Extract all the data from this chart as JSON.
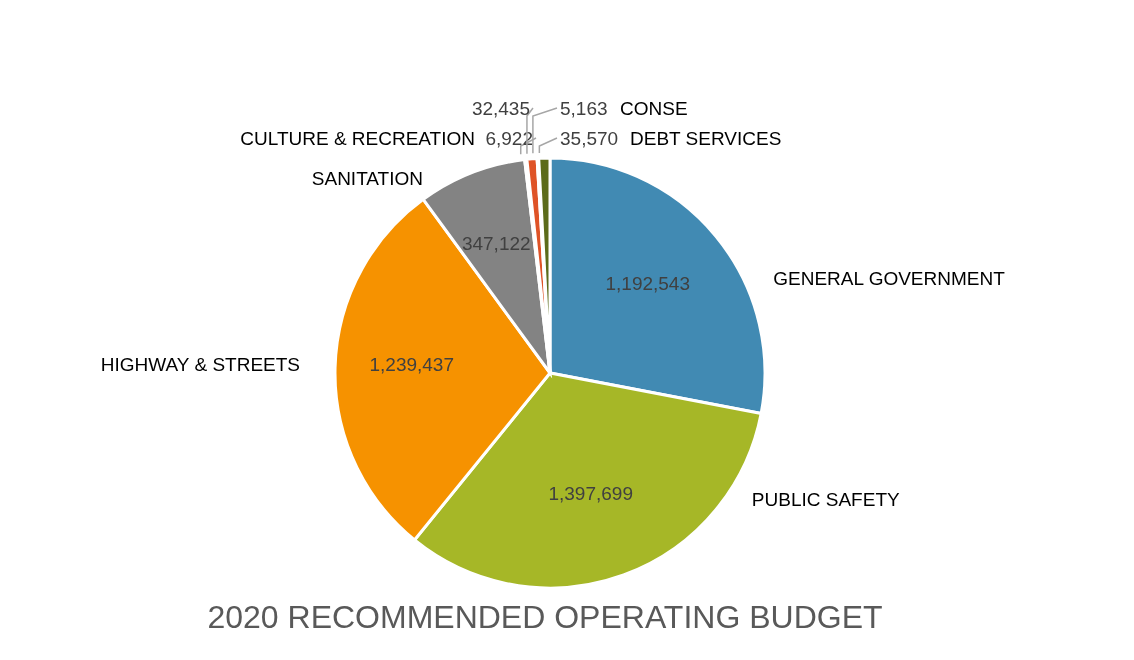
{
  "chart_data": {
    "type": "pie",
    "title": "2020 RECOMMENDED OPERATING BUDGET",
    "categories": [
      "GENERAL GOVERNMENT",
      "PUBLIC SAFETY",
      "HIGHWAY & STREETS",
      "SANITATION",
      "CULTURE & RECREATION",
      null,
      "CONSE",
      "DEBT SERVICES"
    ],
    "values": [
      1192543,
      1397699,
      1239437,
      347122,
      6922,
      32435,
      5163,
      35570
    ],
    "value_labels": [
      "1,192,543",
      "1,397,699",
      "1,239,437",
      "347,122",
      "6,922",
      "32,435",
      "5,163",
      "35,570"
    ],
    "colors": [
      "#418ab3",
      "#a6b727",
      "#f69200",
      "#838383",
      "#fec306",
      "#df5327",
      "#eeeeee",
      "#5c6b1a"
    ],
    "legend": false
  }
}
